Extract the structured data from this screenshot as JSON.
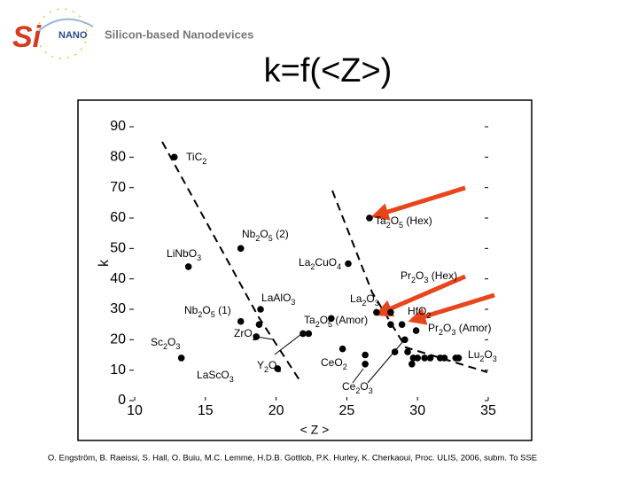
{
  "logo_si": "Si",
  "logo_nano": "NANO",
  "tagline": "Silicon-based Nanodevices",
  "citation": "O. Engström, B. Raeissi, S. Hall, O. Buiu, M.C. Lemme, H.D.B. Gottlob, P.K. Hurley, K. Cherkaoui, Proc. ULIS, 2006, subm. To SSE",
  "chart_data": {
    "type": "scatter",
    "title": "k=f(<Z>)",
    "x_label": "< Z >",
    "y_label": "k",
    "color": "#000000",
    "x": [
      12.8,
      13.8,
      13.3,
      17.5,
      17.5,
      18.9,
      18.8,
      18.6,
      20.1,
      21.9,
      22.3,
      23.9,
      25.1,
      26.6,
      24.7,
      27.1,
      28.1,
      28.9,
      28.1,
      29.1,
      29.9,
      26.3,
      26.3,
      28.4,
      29.3,
      29.7,
      29.6,
      30.0,
      30.5,
      30.9,
      31.6,
      31.9,
      32.7,
      32.9
    ],
    "values": [
      80,
      44,
      14,
      50,
      26,
      30,
      25,
      21,
      10.5,
      22,
      22,
      27,
      45,
      60,
      17,
      29,
      25,
      25,
      29,
      20,
      23,
      12,
      15,
      16,
      16,
      14,
      12,
      14,
      14,
      14,
      14,
      14,
      14,
      14
    ],
    "xlim": [
      10,
      35
    ],
    "ylim": [
      0,
      90
    ],
    "xticks": [
      10,
      15,
      20,
      25,
      30,
      35
    ],
    "yticks": [
      0,
      10,
      20,
      30,
      40,
      50,
      60,
      70,
      80,
      90
    ],
    "annotations": [
      "TiC2",
      "LiNbO3",
      "Sc2O3",
      "LaScO3",
      "Nb2O5 (2)",
      "Nb2O5 (1)",
      "LaAlO3",
      "ZrO2",
      "Y2O3",
      "Ta2O5 (Hex)",
      "La2CuO4",
      "Pr2O3 (Hex)",
      "La2O3",
      "HfO2",
      "Ta2O5 (Amor)",
      "Pr2O3 (Amor)",
      "Lu2O3",
      "CeO2",
      "Ce2O3"
    ]
  }
}
